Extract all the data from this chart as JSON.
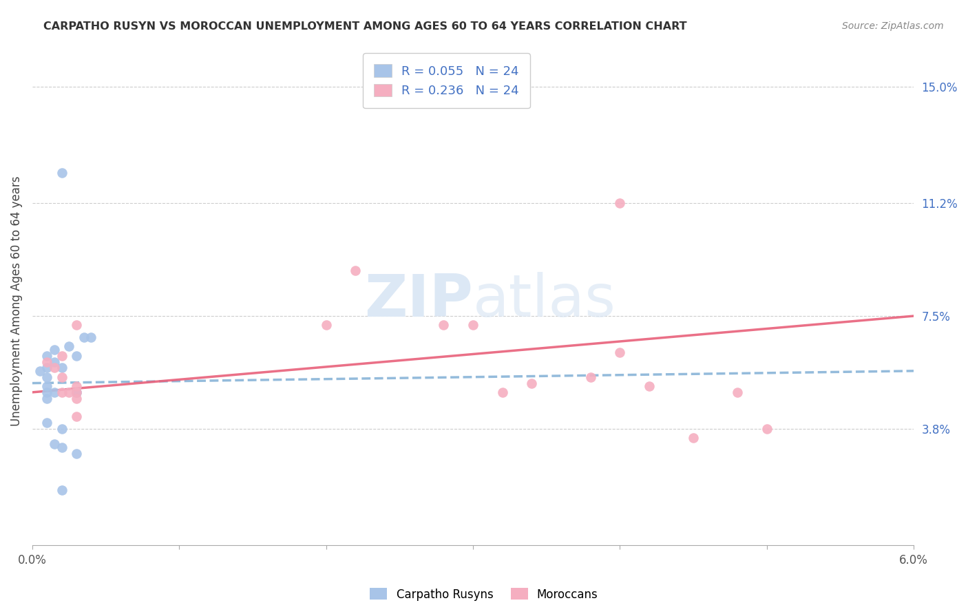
{
  "title": "CARPATHO RUSYN VS MOROCCAN UNEMPLOYMENT AMONG AGES 60 TO 64 YEARS CORRELATION CHART",
  "source": "Source: ZipAtlas.com",
  "ylabel": "Unemployment Among Ages 60 to 64 years",
  "xlim": [
    0.0,
    0.06
  ],
  "ylim": [
    0.0,
    0.16
  ],
  "xticks": [
    0.0,
    0.01,
    0.02,
    0.03,
    0.04,
    0.05,
    0.06
  ],
  "xticklabels": [
    "0.0%",
    "",
    "",
    "",
    "",
    "",
    "6.0%"
  ],
  "ytick_right_labels": [
    "15.0%",
    "11.2%",
    "7.5%",
    "3.8%"
  ],
  "ytick_right_values": [
    0.15,
    0.112,
    0.075,
    0.038
  ],
  "legend_r1": "0.055",
  "legend_n1": "24",
  "legend_r2": "0.236",
  "legend_n2": "24",
  "color_blue": "#a8c4e8",
  "color_pink": "#f5aec0",
  "color_line_blue": "#88b4d8",
  "color_line_pink": "#e8607a",
  "color_text_blue": "#4472c4",
  "watermark_color": "#dce8f5",
  "carpatho_x": [
    0.001,
    0.0015,
    0.001,
    0.0015,
    0.001,
    0.0005,
    0.001,
    0.001,
    0.0015,
    0.001,
    0.002,
    0.0025,
    0.003,
    0.002,
    0.003,
    0.0035,
    0.003,
    0.004,
    0.001,
    0.002,
    0.0015,
    0.002,
    0.003,
    0.002
  ],
  "carpatho_y": [
    0.062,
    0.064,
    0.055,
    0.06,
    0.058,
    0.057,
    0.052,
    0.05,
    0.05,
    0.048,
    0.122,
    0.065,
    0.062,
    0.058,
    0.05,
    0.068,
    0.05,
    0.068,
    0.04,
    0.038,
    0.033,
    0.032,
    0.03,
    0.018
  ],
  "moroccan_x": [
    0.001,
    0.0015,
    0.002,
    0.002,
    0.003,
    0.002,
    0.0025,
    0.003,
    0.003,
    0.003,
    0.003,
    0.02,
    0.022,
    0.028,
    0.03,
    0.032,
    0.034,
    0.038,
    0.04,
    0.042,
    0.045,
    0.048,
    0.05,
    0.04
  ],
  "moroccan_y": [
    0.06,
    0.058,
    0.062,
    0.055,
    0.052,
    0.05,
    0.05,
    0.05,
    0.048,
    0.042,
    0.072,
    0.072,
    0.09,
    0.072,
    0.072,
    0.05,
    0.053,
    0.055,
    0.112,
    0.052,
    0.035,
    0.05,
    0.038,
    0.063
  ]
}
